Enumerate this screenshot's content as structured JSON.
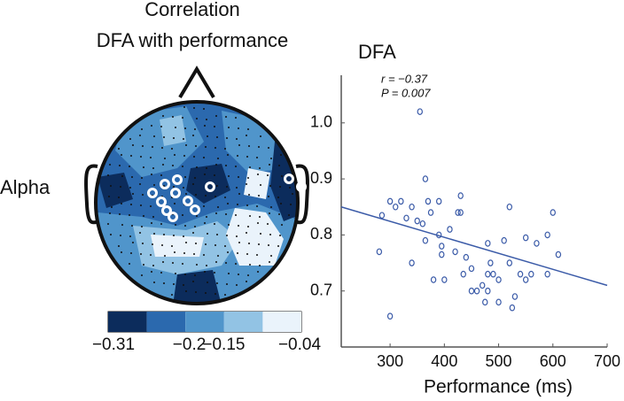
{
  "chart_data": [
    {
      "type": "topomap",
      "title": "Correlation",
      "subtitle": "DFA  with performance",
      "row_label": "Alpha",
      "colorbar": {
        "ticks": [
          {
            "value": -0.31,
            "label": "−0.31"
          },
          {
            "value": -0.2,
            "label": "−0.2"
          },
          {
            "value": -0.15,
            "label": "−0.15"
          },
          {
            "value": -0.04,
            "label": "−0.04"
          }
        ],
        "colors": [
          "#0c2c5c",
          "#2b69ae",
          "#5095cb",
          "#92c3e4",
          "#eaf3fb"
        ]
      }
    },
    {
      "type": "scatter",
      "ylabel": "DFA",
      "xlabel": "Performance (ms)",
      "annotations": [
        "r = −0.37",
        "P = 0.007"
      ],
      "color": "#3b5ba8",
      "x": [
        280,
        285,
        300,
        300,
        310,
        320,
        330,
        340,
        340,
        350,
        355,
        360,
        365,
        365,
        370,
        375,
        380,
        390,
        390,
        395,
        395,
        400,
        410,
        420,
        425,
        430,
        430,
        435,
        440,
        450,
        450,
        460,
        470,
        475,
        480,
        480,
        480,
        485,
        490,
        500,
        500,
        510,
        520,
        520,
        525,
        530,
        540,
        550,
        550,
        560,
        570,
        590,
        590,
        600,
        610
      ],
      "y": [
        0.77,
        0.835,
        0.655,
        0.86,
        0.85,
        0.86,
        0.83,
        0.85,
        0.75,
        0.825,
        1.02,
        0.82,
        0.9,
        0.79,
        0.86,
        0.84,
        0.72,
        0.86,
        0.8,
        0.78,
        0.765,
        0.72,
        0.81,
        0.77,
        0.84,
        0.84,
        0.87,
        0.73,
        0.76,
        0.74,
        0.7,
        0.7,
        0.71,
        0.68,
        0.785,
        0.73,
        0.7,
        0.75,
        0.73,
        0.72,
        0.68,
        0.79,
        0.85,
        0.75,
        0.67,
        0.69,
        0.73,
        0.795,
        0.72,
        0.73,
        0.785,
        0.73,
        0.8,
        0.84,
        0.765
      ],
      "fit": {
        "x": [
          210,
          700
        ],
        "y": [
          0.85,
          0.71
        ]
      },
      "xlim": [
        210,
        700
      ],
      "ylim": [
        0.6,
        1.085
      ],
      "xticks": [
        300,
        400,
        500,
        600,
        700
      ],
      "yticks": [
        0.7,
        0.8,
        0.9,
        {
          "value": 1,
          "label": "1.0"
        }
      ]
    }
  ]
}
